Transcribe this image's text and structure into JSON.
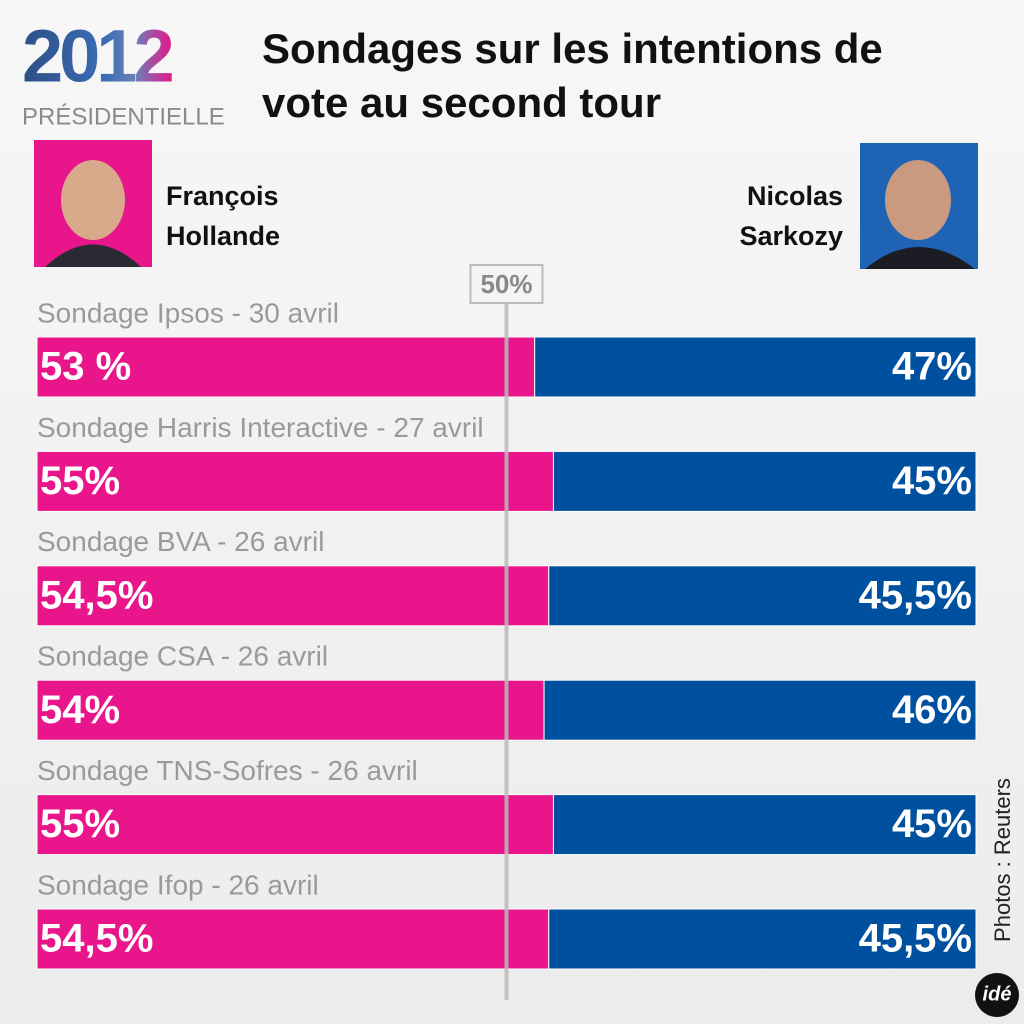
{
  "chart_data": {
    "type": "bar",
    "orientation": "horizontal",
    "stacked": true,
    "logo": {
      "year": "2012",
      "label": "PRÉSIDENTIELLE"
    },
    "title": "Sondages sur les intentions de vote au second tour",
    "categories": [
      "Sondage Ipsos - 30 avril",
      "Sondage Harris Interactive - 27 avril",
      "Sondage BVA - 26 avril",
      "Sondage CSA - 26 avril",
      "Sondage TNS-Sofres - 26 avril",
      "Sondage Ifop - 26 avril"
    ],
    "series": [
      {
        "name": "François Hollande",
        "color": "#e8168a",
        "values": [
          53,
          55,
          54.5,
          54,
          55,
          54.5
        ],
        "value_labels": [
          "53 %",
          "55%",
          "54,5%",
          "54%",
          "55%",
          "54,5%"
        ]
      },
      {
        "name": "Nicolas Sarkozy",
        "color": "#0050a0",
        "values": [
          47,
          45,
          45.5,
          46,
          45,
          45.5
        ],
        "value_labels": [
          "47%",
          "45%",
          "45,5%",
          "46%",
          "45%",
          "45,5%"
        ]
      }
    ],
    "xlim": [
      0,
      100
    ],
    "reference_line": {
      "value": 50,
      "label": "50%"
    },
    "credit": "Photos : Reuters",
    "brand": "idé"
  }
}
